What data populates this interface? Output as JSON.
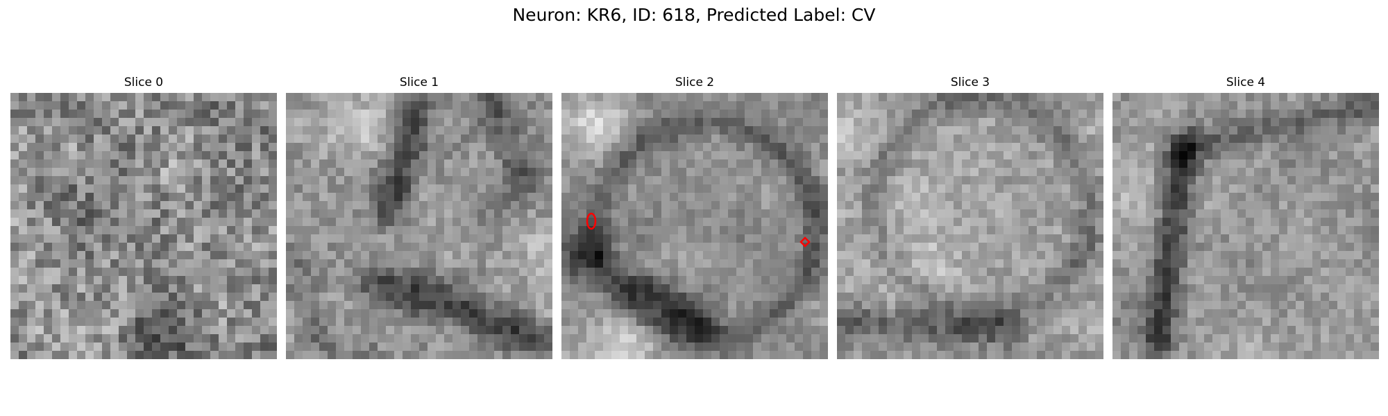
{
  "figure": {
    "title": "Neuron: KR6, ID: 618, Predicted Label: CV"
  },
  "panels": [
    {
      "title": "Slice 0"
    },
    {
      "title": "Slice 1"
    },
    {
      "title": "Slice 2"
    },
    {
      "title": "Slice 3"
    },
    {
      "title": "Slice 4"
    }
  ],
  "colormap": "gray",
  "marker_color": "#ff0000"
}
